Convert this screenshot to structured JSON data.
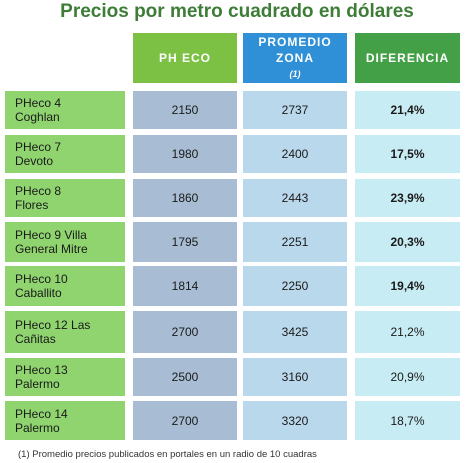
{
  "title": "Precios por metro cuadrado en dólares",
  "table": {
    "headers": [
      {
        "text": "PH ECO"
      },
      {
        "text": "PROMEDIO ZONA",
        "note": "(1)"
      },
      {
        "text": "DIFERENCIA"
      }
    ],
    "rows": [
      [
        "PHeco 4 Coghlan",
        "2150",
        "2737",
        "21,4%"
      ],
      [
        "PHeco 7 Devoto",
        "1980",
        "2400",
        "17,5%"
      ],
      [
        "PHeco 8 Flores",
        "1860",
        "2443",
        "23,9%"
      ],
      [
        "PHeco 9 Villa General Mitre",
        "1795",
        "2251",
        "20,3%"
      ],
      [
        "PHeco 10 Caballito",
        "1814",
        "2250",
        "19,4%"
      ],
      [
        "PHeco 12 Las Cañitas",
        "2700",
        "3425",
        "21,2%"
      ],
      [
        "PHeco 13 Palermo",
        "2500",
        "3160",
        "20,9%"
      ],
      [
        "PHeco 14 Palermo",
        "2700",
        "3320",
        "18,7%"
      ]
    ]
  },
  "footnote": "(1) Promedio precios publicados en portales en un radio de 10 cuadras"
}
